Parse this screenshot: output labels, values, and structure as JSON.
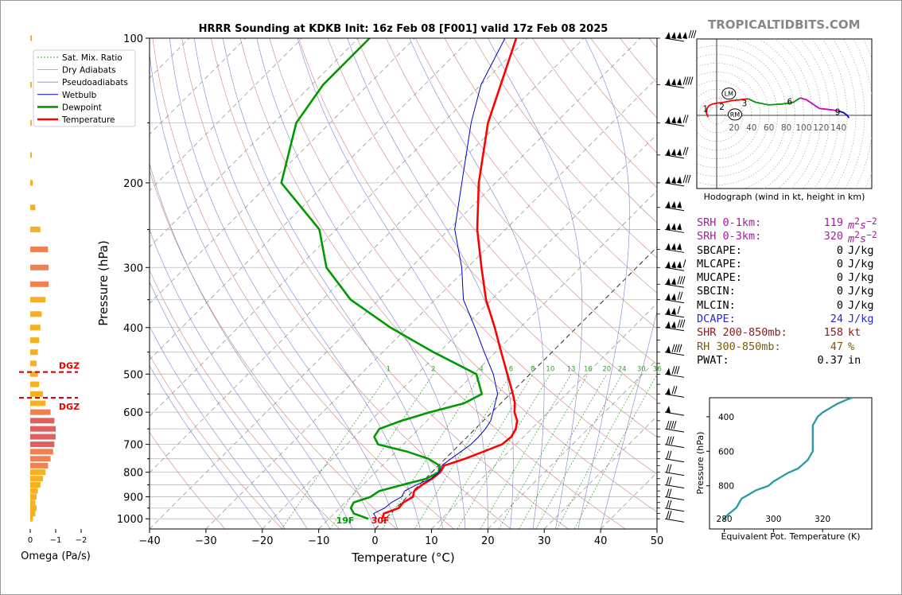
{
  "site": "TROPICALTIDBITS.COM",
  "skewt": {
    "title": "HRRR Sounding at KDKB Init: 16z Feb 08 [F001] valid 17z Feb 08 2025",
    "xlabel": "Temperature (°C)",
    "ylabel": "Pressure (hPa)",
    "xlim": [
      -40,
      50
    ],
    "ylim": [
      1050,
      100
    ],
    "xticks": [
      "−40",
      "−30",
      "−20",
      "−10",
      "0",
      "10",
      "20",
      "30",
      "40",
      "50"
    ],
    "yticks": [
      "100",
      "200",
      "300",
      "400",
      "500",
      "600",
      "700",
      "800",
      "900",
      "1000"
    ],
    "legend": [
      "Sat. Mix. Ratio",
      "Dry Adiabats",
      "Pseudoadiabats",
      "Wetbulb",
      "Dewpoint",
      "Temperature"
    ],
    "surface_temp_label": "30F",
    "surface_dew_label": "19F",
    "mixing_ratio_labels": [
      "1",
      "2",
      "4",
      "6",
      "8",
      "10",
      "13",
      "16",
      "20",
      "24",
      "30",
      "36"
    ]
  },
  "chart_data": {
    "type": "line",
    "series": [
      {
        "name": "Temperature",
        "color": "#ff0000",
        "p": [
          1000,
          975,
          950,
          925,
          900,
          875,
          850,
          825,
          800,
          775,
          750,
          725,
          700,
          675,
          650,
          625,
          600,
          575,
          550,
          500,
          450,
          400,
          350,
          300,
          250,
          200,
          150,
          125,
          100
        ],
        "t": [
          -0.5,
          -1.2,
          0.5,
          0.3,
          1.0,
          0.2,
          0.5,
          1.2,
          1.5,
          1.0,
          3.5,
          5.5,
          7.5,
          7.8,
          7.2,
          6.0,
          4.0,
          2.5,
          0.5,
          -4.0,
          -9.0,
          -14.5,
          -21.0,
          -27.5,
          -35.0,
          -43.0,
          -52.0,
          -56.5,
          -62.0
        ]
      },
      {
        "name": "Dewpoint",
        "color": "#009900",
        "p": [
          1000,
          975,
          950,
          925,
          900,
          875,
          850,
          825,
          800,
          775,
          750,
          725,
          700,
          675,
          650,
          625,
          600,
          575,
          550,
          500,
          450,
          400,
          350,
          300,
          250,
          200,
          150,
          125,
          100
        ],
        "t": [
          -3.0,
          -6.5,
          -8.0,
          -8.5,
          -6.5,
          -6.0,
          -3.0,
          0.2,
          1.2,
          0.2,
          -3.0,
          -8.0,
          -14.5,
          -16.5,
          -17.0,
          -14.5,
          -11.0,
          -6.5,
          -5.0,
          -9.5,
          -21.0,
          -33.0,
          -45.0,
          -55.0,
          -63.0,
          -78.0,
          -86.0,
          -88.0,
          -88.0
        ]
      },
      {
        "name": "Wetbulb",
        "color": "#0000cc",
        "p": [
          1000,
          975,
          950,
          925,
          900,
          875,
          850,
          825,
          800,
          775,
          750,
          725,
          700,
          675,
          650,
          625,
          600,
          575,
          550,
          500,
          450,
          400,
          350,
          300,
          250,
          200,
          150,
          125,
          100
        ],
        "t": [
          -1.5,
          -3.0,
          -2.0,
          -1.8,
          -1.0,
          -1.5,
          -0.5,
          1.0,
          1.3,
          0.6,
          1.0,
          1.5,
          2.0,
          2.0,
          1.8,
          1.3,
          0.2,
          -1.0,
          -2.2,
          -6.5,
          -12.0,
          -18.0,
          -25.0,
          -31.0,
          -39.0,
          -46.0,
          -55.0,
          -60.0,
          -64.0
        ]
      }
    ],
    "omega": {
      "xlabel": "Omega (Pa/s)",
      "xticks": [
        "0",
        "−1",
        "−2"
      ],
      "dgz_label": "DGZ",
      "dgz_levels": [
        495,
        560
      ],
      "p": [
        1000,
        975,
        950,
        925,
        900,
        875,
        850,
        825,
        800,
        775,
        750,
        725,
        700,
        675,
        650,
        625,
        600,
        575,
        550,
        525,
        500,
        475,
        450,
        425,
        400,
        375,
        350,
        325,
        300,
        275,
        250,
        225,
        200,
        175,
        150,
        125,
        100
      ],
      "v": [
        -0.1,
        -0.2,
        -0.25,
        -0.2,
        -0.25,
        -0.3,
        -0.4,
        -0.5,
        -0.6,
        -0.7,
        -0.8,
        -0.9,
        -0.95,
        -1.0,
        -1.0,
        -0.95,
        -0.8,
        -0.6,
        -0.5,
        -0.35,
        -0.3,
        -0.25,
        -0.3,
        -0.35,
        -0.4,
        -0.45,
        -0.6,
        -0.72,
        -0.72,
        -0.7,
        -0.4,
        -0.2,
        -0.1,
        -0.05,
        -0.03,
        -0.03,
        -0.02
      ]
    },
    "hodograph": {
      "caption": "Hodograph (wind in kt, height in km)",
      "ring_labels": [
        "20",
        "40",
        "60",
        "80",
        "100",
        "120",
        "140"
      ],
      "height_labels": [
        "1",
        "2",
        "3",
        "6",
        "9"
      ],
      "storm_labels": [
        "LM",
        "RM"
      ],
      "segments": [
        {
          "color": "#ff0000",
          "u": [
            -10,
            -12,
            -11,
            -9,
            -5,
            0,
            8,
            18,
            28,
            36
          ],
          "v": [
            -2,
            3,
            8,
            11,
            13,
            14,
            15,
            17,
            18,
            19
          ]
        },
        {
          "color": "#009900",
          "u": [
            36,
            45,
            60,
            75,
            88,
            96
          ],
          "v": [
            19,
            15,
            12,
            13,
            15,
            20
          ]
        },
        {
          "color": "#cc00cc",
          "u": [
            96,
            103,
            112,
            118,
            126,
            134,
            140
          ],
          "v": [
            20,
            18,
            12,
            8,
            7,
            6,
            5
          ]
        },
        {
          "color": "#0000dd",
          "u": [
            140,
            146,
            150,
            152
          ],
          "v": [
            5,
            3,
            0,
            -3
          ]
        }
      ],
      "label_pos": [
        [
          -13,
          8
        ],
        [
          6,
          10
        ],
        [
          32,
          14
        ],
        [
          84,
          16
        ],
        [
          139,
          4
        ]
      ],
      "lm": [
        14,
        25
      ],
      "rm": [
        21,
        1
      ]
    },
    "theta_e": {
      "xlabel": "Equivalent Pot. Temperature (K)",
      "ylabel": "Pressure (hPa)",
      "xticks": [
        "280",
        "300",
        "320"
      ],
      "yticks": [
        "400",
        "600",
        "800"
      ],
      "p": [
        1000,
        990,
        975,
        960,
        950,
        925,
        900,
        875,
        850,
        825,
        800,
        775,
        750,
        725,
        700,
        675,
        650,
        625,
        600,
        575,
        550,
        525,
        500,
        475,
        450,
        425,
        400,
        375,
        350,
        325,
        300,
        290
      ],
      "te": [
        280,
        280,
        281,
        282,
        283,
        285,
        286,
        287,
        290,
        293,
        298,
        300,
        303,
        306,
        310,
        312,
        314,
        315,
        316,
        316,
        316,
        316,
        316,
        316,
        316,
        317,
        318,
        320,
        323,
        326,
        330,
        332
      ]
    }
  },
  "stats": [
    {
      "label": "SRH 0-1km:",
      "value": "119",
      "unit": "m2s-2",
      "color": "#a020a0"
    },
    {
      "label": "SRH 0-3km:",
      "value": "320",
      "unit": "m2s-2",
      "color": "#a020a0"
    },
    {
      "label": "SBCAPE:",
      "value": "0",
      "unit": "J/kg",
      "color": "#000000"
    },
    {
      "label": "MLCAPE:",
      "value": "0",
      "unit": "J/kg",
      "color": "#000000"
    },
    {
      "label": "MUCAPE:",
      "value": "0",
      "unit": "J/kg",
      "color": "#000000"
    },
    {
      "label": "SBCIN:",
      "value": "0",
      "unit": "J/kg",
      "color": "#000000"
    },
    {
      "label": "MLCIN:",
      "value": "0",
      "unit": "J/kg",
      "color": "#000000"
    },
    {
      "label": "DCAPE:",
      "value": "24",
      "unit": "J/kg",
      "color": "#2a2acc"
    },
    {
      "label": "SHR 200-850mb:",
      "value": "158",
      "unit": "kt",
      "color": "#8b1a1a"
    },
    {
      "label": "RH 300-850mb:",
      "value": "47",
      "unit": "%",
      "color": "#7a5a10"
    },
    {
      "label": "PWAT:",
      "value": "0.37",
      "unit": "in",
      "color": "#000000"
    }
  ]
}
